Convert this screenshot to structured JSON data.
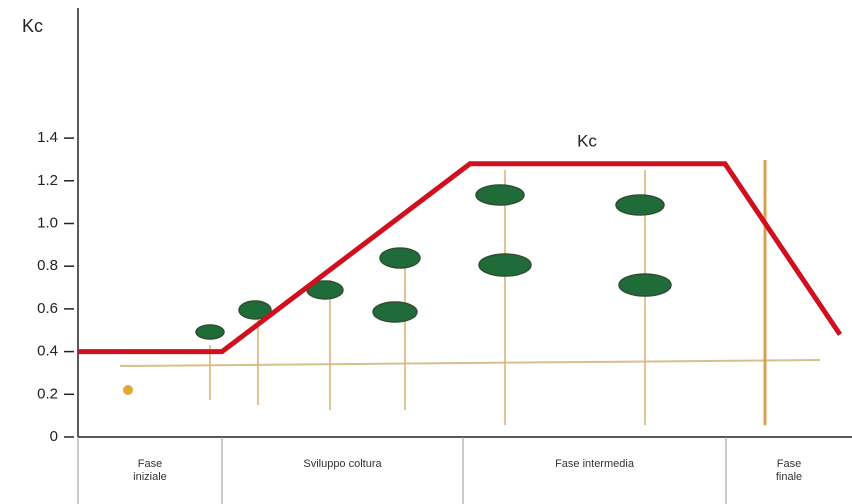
{
  "chart_data": {
    "type": "line",
    "y_label": "Kc",
    "annotation": "Kc",
    "stages": [
      "Fase iniziale",
      "Sviluppo coltura",
      "Fase intermedia",
      "Fase finale"
    ],
    "values": [
      0.4,
      0.4,
      1.28,
      1.28,
      0.48
    ],
    "color": "#d0101e",
    "ylim": [
      0,
      2
    ],
    "yticks": [
      0,
      0.2,
      0.4,
      0.6,
      0.8,
      {
        "value": 1,
        "label": "1.0"
      },
      1.2,
      1.4
    ]
  }
}
